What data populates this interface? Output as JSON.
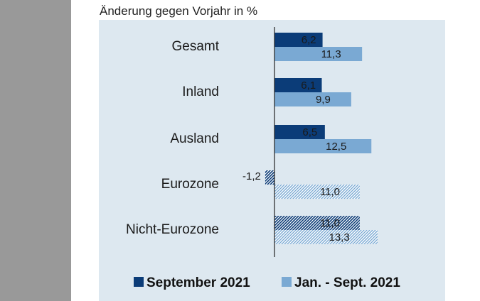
{
  "chart_data": {
    "type": "bar",
    "orientation": "horizontal",
    "subtitle": "Änderung gegen Vorjahr in %",
    "categories": [
      "Gesamt",
      "Inland",
      "Ausland",
      "Eurozone",
      "Nicht-Eurozone"
    ],
    "series": [
      {
        "name": "September 2021",
        "color": "#0b3c78",
        "values": [
          6.2,
          6.1,
          6.5,
          -1.2,
          11.0
        ],
        "labels": [
          "6,2",
          "6,1",
          "6,5",
          "-1,2",
          "11,0"
        ],
        "hatched": [
          false,
          false,
          false,
          true,
          true
        ]
      },
      {
        "name": "Jan. - Sept. 2021",
        "color": "#7aa9d3",
        "values": [
          11.3,
          9.9,
          12.5,
          11.0,
          13.3
        ],
        "labels": [
          "11,3",
          "9,9",
          "12,5",
          "11,0",
          "13,3"
        ],
        "hatched": [
          false,
          false,
          false,
          true,
          true
        ]
      }
    ],
    "legend": [
      "September 2021",
      "Jan. - Sept. 2021"
    ],
    "legend_position": "bottom"
  }
}
